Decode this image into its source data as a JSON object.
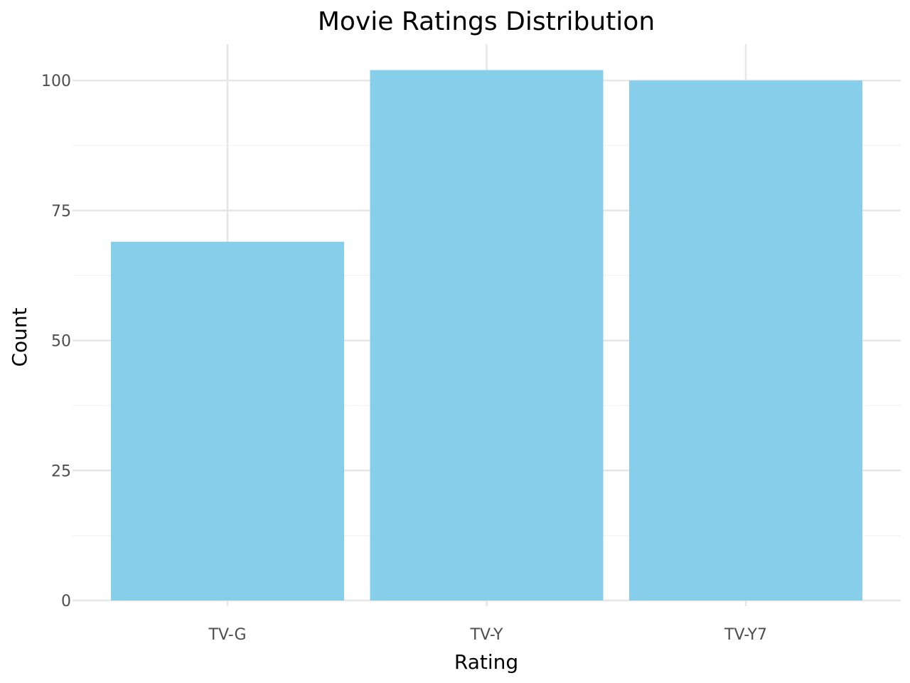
{
  "chart_data": {
    "type": "bar",
    "title": "Movie Ratings Distribution",
    "xlabel": "Rating",
    "ylabel": "Count",
    "categories": [
      "TV-G",
      "TV-Y",
      "TV-Y7"
    ],
    "values": [
      69,
      102,
      100
    ],
    "ylim": [
      0,
      107
    ],
    "yticks": [
      0,
      25,
      50,
      75,
      100
    ],
    "ytick_labels": [
      "0",
      "25",
      "50",
      "75",
      "100"
    ],
    "grid": true,
    "legend": "none",
    "colors": {
      "bar": "#87CEEB",
      "grid_major": "#e6e6e6",
      "grid_minor": "#f4f4f4",
      "background": "#ffffff"
    }
  }
}
